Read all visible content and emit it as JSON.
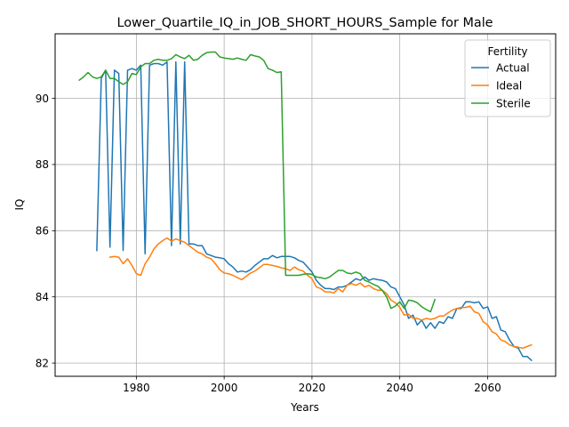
{
  "chart_data": {
    "type": "line",
    "title": "Lower_Quartile_IQ_in_JOB_SHORT_HOURS_Sample for Male",
    "xlabel": "Years",
    "ylabel": "IQ",
    "xlim": [
      1961.5,
      2075.5
    ],
    "ylim": [
      81.6,
      91.95
    ],
    "xticks": [
      1980,
      2000,
      2020,
      2040,
      2060
    ],
    "yticks": [
      82,
      84,
      86,
      88,
      90
    ],
    "grid": true,
    "legend": {
      "title": "Fertility",
      "placement": "top-right"
    },
    "series": [
      {
        "name": "Actual",
        "color": "#1f77b4",
        "points": [
          [
            1971,
            85.4
          ],
          [
            1972,
            90.6
          ],
          [
            1973,
            90.85
          ],
          [
            1974,
            85.5
          ],
          [
            1975,
            90.85
          ],
          [
            1976,
            90.75
          ],
          [
            1977,
            85.4
          ],
          [
            1978,
            90.85
          ],
          [
            1979,
            90.9
          ],
          [
            1980,
            90.85
          ],
          [
            1981,
            91.0
          ],
          [
            1982,
            85.3
          ],
          [
            1983,
            91.0
          ],
          [
            1984,
            91.05
          ],
          [
            1985,
            91.05
          ],
          [
            1986,
            91.0
          ],
          [
            1987,
            91.1
          ],
          [
            1988,
            85.55
          ],
          [
            1989,
            91.1
          ],
          [
            1990,
            85.6
          ],
          [
            1991,
            91.1
          ],
          [
            1992,
            85.6
          ],
          [
            1993,
            85.6
          ],
          [
            1994,
            85.55
          ],
          [
            1995,
            85.55
          ],
          [
            1996,
            85.3
          ],
          [
            1997,
            85.25
          ],
          [
            1998,
            85.2
          ],
          [
            1999,
            85.18
          ],
          [
            2000,
            85.15
          ],
          [
            2001,
            85.0
          ],
          [
            2002,
            84.9
          ],
          [
            2003,
            84.75
          ],
          [
            2004,
            84.78
          ],
          [
            2005,
            84.75
          ],
          [
            2006,
            84.82
          ],
          [
            2007,
            84.95
          ],
          [
            2008,
            85.05
          ],
          [
            2009,
            85.15
          ],
          [
            2010,
            85.15
          ],
          [
            2011,
            85.25
          ],
          [
            2012,
            85.18
          ],
          [
            2013,
            85.22
          ],
          [
            2014,
            85.22
          ],
          [
            2015,
            85.22
          ],
          [
            2016,
            85.18
          ],
          [
            2017,
            85.1
          ],
          [
            2018,
            85.05
          ],
          [
            2019,
            84.9
          ],
          [
            2020,
            84.75
          ],
          [
            2021,
            84.5
          ],
          [
            2022,
            84.35
          ],
          [
            2023,
            84.25
          ],
          [
            2024,
            84.25
          ],
          [
            2025,
            84.22
          ],
          [
            2026,
            84.3
          ],
          [
            2027,
            84.3
          ],
          [
            2028,
            84.35
          ],
          [
            2029,
            84.45
          ],
          [
            2030,
            84.55
          ],
          [
            2031,
            84.5
          ],
          [
            2032,
            84.6
          ],
          [
            2033,
            84.5
          ],
          [
            2034,
            84.55
          ],
          [
            2035,
            84.52
          ],
          [
            2036,
            84.5
          ],
          [
            2037,
            84.45
          ],
          [
            2038,
            84.3
          ],
          [
            2039,
            84.25
          ],
          [
            2040,
            84.0
          ],
          [
            2041,
            83.75
          ],
          [
            2042,
            83.35
          ],
          [
            2043,
            83.45
          ],
          [
            2044,
            83.15
          ],
          [
            2045,
            83.3
          ],
          [
            2046,
            83.05
          ],
          [
            2047,
            83.22
          ],
          [
            2048,
            83.05
          ],
          [
            2049,
            83.25
          ],
          [
            2050,
            83.2
          ],
          [
            2051,
            83.4
          ],
          [
            2052,
            83.35
          ],
          [
            2053,
            83.65
          ],
          [
            2054,
            83.65
          ],
          [
            2055,
            83.85
          ],
          [
            2056,
            83.85
          ],
          [
            2057,
            83.82
          ],
          [
            2058,
            83.85
          ],
          [
            2059,
            83.65
          ],
          [
            2060,
            83.7
          ],
          [
            2061,
            83.35
          ],
          [
            2062,
            83.4
          ],
          [
            2063,
            83.0
          ],
          [
            2064,
            82.95
          ],
          [
            2065,
            82.7
          ],
          [
            2066,
            82.5
          ],
          [
            2067,
            82.45
          ],
          [
            2068,
            82.2
          ],
          [
            2069,
            82.2
          ],
          [
            2070,
            82.08
          ]
        ]
      },
      {
        "name": "Ideal",
        "color": "#ff7f0e",
        "points": [
          [
            1974,
            85.2
          ],
          [
            1975,
            85.22
          ],
          [
            1976,
            85.2
          ],
          [
            1977,
            85.0
          ],
          [
            1978,
            85.15
          ],
          [
            1979,
            84.95
          ],
          [
            1980,
            84.7
          ],
          [
            1981,
            84.65
          ],
          [
            1982,
            85.0
          ],
          [
            1983,
            85.2
          ],
          [
            1984,
            85.45
          ],
          [
            1985,
            85.6
          ],
          [
            1986,
            85.7
          ],
          [
            1987,
            85.78
          ],
          [
            1988,
            85.68
          ],
          [
            1989,
            85.75
          ],
          [
            1990,
            85.7
          ],
          [
            1991,
            85.65
          ],
          [
            1992,
            85.55
          ],
          [
            1993,
            85.45
          ],
          [
            1994,
            85.35
          ],
          [
            1995,
            85.3
          ],
          [
            1996,
            85.2
          ],
          [
            1997,
            85.15
          ],
          [
            1998,
            85.0
          ],
          [
            1999,
            84.82
          ],
          [
            2000,
            84.72
          ],
          [
            2001,
            84.7
          ],
          [
            2002,
            84.65
          ],
          [
            2003,
            84.58
          ],
          [
            2004,
            84.52
          ],
          [
            2005,
            84.62
          ],
          [
            2006,
            84.72
          ],
          [
            2007,
            84.78
          ],
          [
            2008,
            84.88
          ],
          [
            2009,
            84.98
          ],
          [
            2010,
            84.98
          ],
          [
            2011,
            84.95
          ],
          [
            2012,
            84.92
          ],
          [
            2013,
            84.88
          ],
          [
            2014,
            84.85
          ],
          [
            2015,
            84.8
          ],
          [
            2016,
            84.9
          ],
          [
            2017,
            84.82
          ],
          [
            2018,
            84.78
          ],
          [
            2019,
            84.65
          ],
          [
            2020,
            84.55
          ],
          [
            2021,
            84.3
          ],
          [
            2022,
            84.25
          ],
          [
            2023,
            84.15
          ],
          [
            2024,
            84.15
          ],
          [
            2025,
            84.12
          ],
          [
            2026,
            84.25
          ],
          [
            2027,
            84.15
          ],
          [
            2028,
            84.35
          ],
          [
            2029,
            84.4
          ],
          [
            2030,
            84.35
          ],
          [
            2031,
            84.42
          ],
          [
            2032,
            84.3
          ],
          [
            2033,
            84.35
          ],
          [
            2034,
            84.25
          ],
          [
            2035,
            84.2
          ],
          [
            2036,
            84.2
          ],
          [
            2037,
            84.1
          ],
          [
            2038,
            83.9
          ],
          [
            2039,
            83.82
          ],
          [
            2040,
            83.68
          ],
          [
            2041,
            83.45
          ],
          [
            2042,
            83.48
          ],
          [
            2043,
            83.35
          ],
          [
            2044,
            83.35
          ],
          [
            2045,
            83.3
          ],
          [
            2046,
            83.35
          ],
          [
            2047,
            83.32
          ],
          [
            2048,
            83.35
          ],
          [
            2049,
            83.42
          ],
          [
            2050,
            83.42
          ],
          [
            2051,
            83.52
          ],
          [
            2052,
            83.6
          ],
          [
            2053,
            83.65
          ],
          [
            2054,
            83.68
          ],
          [
            2055,
            83.68
          ],
          [
            2056,
            83.72
          ],
          [
            2057,
            83.55
          ],
          [
            2058,
            83.5
          ],
          [
            2059,
            83.25
          ],
          [
            2060,
            83.15
          ],
          [
            2061,
            82.95
          ],
          [
            2062,
            82.88
          ],
          [
            2063,
            82.7
          ],
          [
            2064,
            82.65
          ],
          [
            2065,
            82.55
          ],
          [
            2066,
            82.5
          ],
          [
            2067,
            82.48
          ],
          [
            2068,
            82.45
          ],
          [
            2069,
            82.5
          ],
          [
            2070,
            82.55
          ]
        ]
      },
      {
        "name": "Sterile",
        "color": "#2ca02c",
        "points": [
          [
            1967,
            90.55
          ],
          [
            1968,
            90.65
          ],
          [
            1969,
            90.78
          ],
          [
            1970,
            90.65
          ],
          [
            1971,
            90.6
          ],
          [
            1972,
            90.65
          ],
          [
            1973,
            90.85
          ],
          [
            1974,
            90.6
          ],
          [
            1975,
            90.6
          ],
          [
            1976,
            90.5
          ],
          [
            1977,
            90.42
          ],
          [
            1978,
            90.5
          ],
          [
            1979,
            90.75
          ],
          [
            1980,
            90.72
          ],
          [
            1981,
            90.95
          ],
          [
            1982,
            91.05
          ],
          [
            1983,
            91.05
          ],
          [
            1984,
            91.15
          ],
          [
            1985,
            91.18
          ],
          [
            1986,
            91.15
          ],
          [
            1987,
            91.15
          ],
          [
            1988,
            91.2
          ],
          [
            1989,
            91.32
          ],
          [
            1990,
            91.25
          ],
          [
            1991,
            91.2
          ],
          [
            1992,
            91.3
          ],
          [
            1993,
            91.15
          ],
          [
            1994,
            91.18
          ],
          [
            1995,
            91.3
          ],
          [
            1996,
            91.38
          ],
          [
            1997,
            91.4
          ],
          [
            1998,
            91.4
          ],
          [
            1999,
            91.25
          ],
          [
            2000,
            91.22
          ],
          [
            2001,
            91.2
          ],
          [
            2002,
            91.18
          ],
          [
            2003,
            91.22
          ],
          [
            2004,
            91.18
          ],
          [
            2005,
            91.15
          ],
          [
            2006,
            91.32
          ],
          [
            2007,
            91.28
          ],
          [
            2008,
            91.25
          ],
          [
            2009,
            91.15
          ],
          [
            2010,
            90.9
          ],
          [
            2011,
            90.85
          ],
          [
            2012,
            90.78
          ],
          [
            2013,
            90.8
          ],
          [
            2014,
            84.65
          ],
          [
            2015,
            84.65
          ],
          [
            2016,
            84.65
          ],
          [
            2017,
            84.65
          ],
          [
            2018,
            84.68
          ],
          [
            2019,
            84.7
          ],
          [
            2020,
            84.68
          ],
          [
            2021,
            84.6
          ],
          [
            2022,
            84.58
          ],
          [
            2023,
            84.55
          ],
          [
            2024,
            84.6
          ],
          [
            2025,
            84.7
          ],
          [
            2026,
            84.8
          ],
          [
            2027,
            84.8
          ],
          [
            2028,
            84.72
          ],
          [
            2029,
            84.7
          ],
          [
            2030,
            84.75
          ],
          [
            2031,
            84.7
          ],
          [
            2032,
            84.5
          ],
          [
            2033,
            84.45
          ],
          [
            2034,
            84.38
          ],
          [
            2035,
            84.32
          ],
          [
            2036,
            84.2
          ],
          [
            2037,
            84.0
          ],
          [
            2038,
            83.65
          ],
          [
            2039,
            83.72
          ],
          [
            2040,
            83.85
          ],
          [
            2041,
            83.65
          ],
          [
            2042,
            83.9
          ],
          [
            2043,
            83.88
          ],
          [
            2044,
            83.82
          ],
          [
            2045,
            83.7
          ],
          [
            2046,
            83.62
          ],
          [
            2047,
            83.55
          ],
          [
            2048,
            83.92
          ]
        ]
      }
    ]
  }
}
